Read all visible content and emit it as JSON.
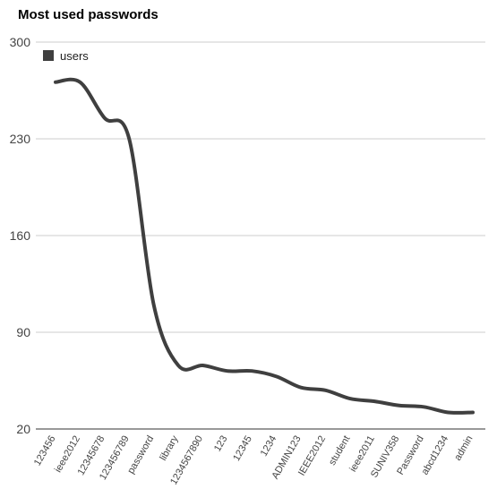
{
  "chart_data": {
    "type": "line",
    "title": "Most used passwords",
    "xlabel": "",
    "ylabel": "",
    "categories": [
      "123456",
      "ieee2012",
      "12345678",
      "123456789",
      "password",
      "library",
      "1234567890",
      "123",
      "12345",
      "1234",
      "ADMIN123",
      "IEEE2012",
      "student",
      "ieee2011",
      "SUNIV358",
      "Password",
      "abcd1234",
      "admin"
    ],
    "series": [
      {
        "name": "users",
        "values": [
          271,
          271,
          245,
          230,
          110,
          66,
          66,
          62,
          62,
          58,
          50,
          48,
          42,
          40,
          37,
          36,
          32,
          32
        ],
        "color": "#3f3f3f"
      }
    ],
    "ylim": [
      20,
      300
    ],
    "yticks": [
      20,
      90,
      160,
      230,
      300
    ],
    "grid": true,
    "legend": "top-left"
  }
}
